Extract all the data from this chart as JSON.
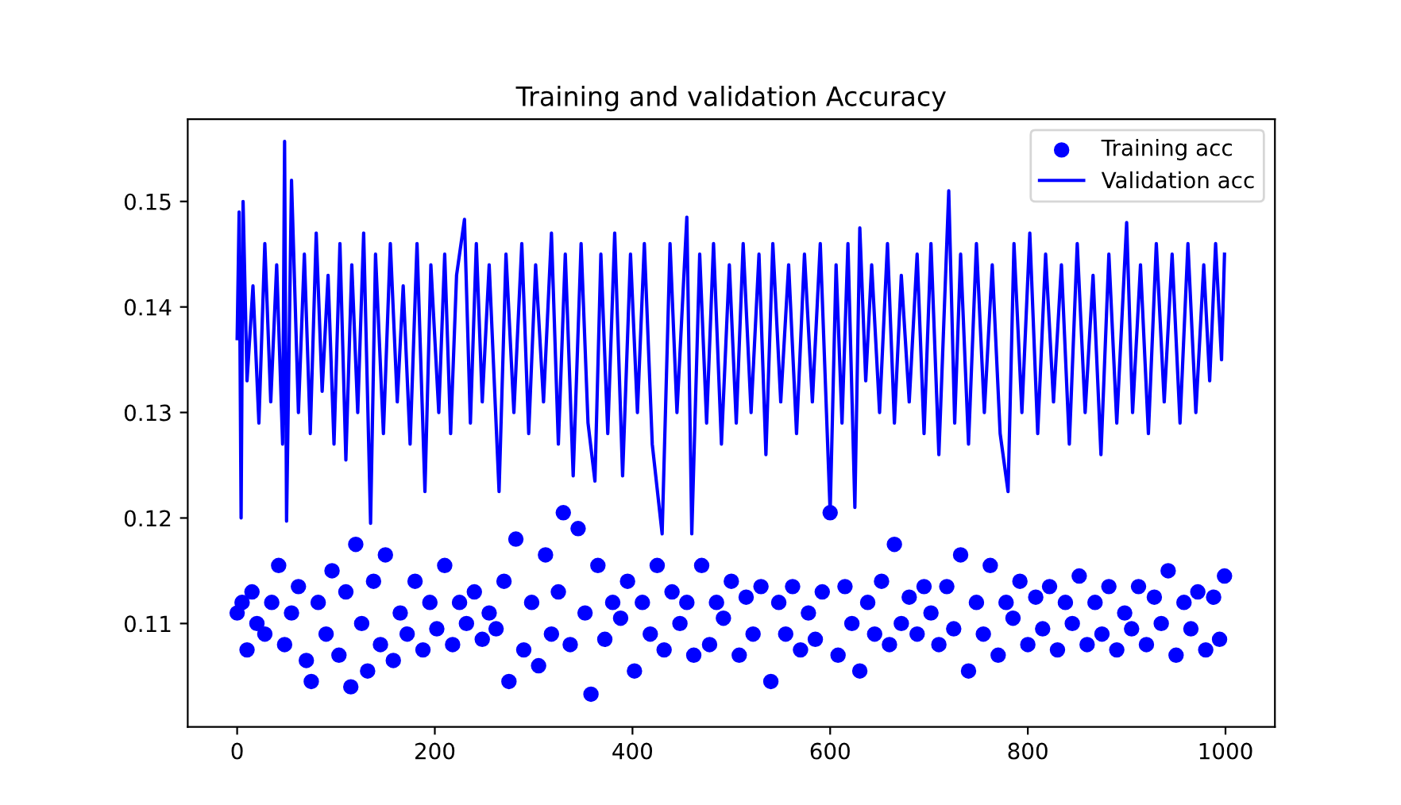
{
  "chart_data": {
    "type": "line",
    "title": "Training and validation Accuracy",
    "xlim": [
      -50,
      1050
    ],
    "xticks": [
      0,
      200,
      400,
      600,
      800,
      1000
    ],
    "ylim": [
      0.1002,
      0.1578
    ],
    "yticks": [
      0.11,
      0.12,
      0.13,
      0.14,
      0.15
    ],
    "grid": false,
    "legend": "top right",
    "series": [
      {
        "name": "Training acc",
        "type": "scatter",
        "marker": "circle",
        "color": "#0000ff",
        "x": [
          0,
          5,
          10,
          15,
          20,
          28,
          35,
          42,
          48,
          55,
          62,
          70,
          75,
          82,
          90,
          96,
          103,
          110,
          115,
          120,
          126,
          132,
          138,
          145,
          150,
          158,
          165,
          172,
          180,
          188,
          195,
          202,
          210,
          218,
          225,
          232,
          240,
          248,
          255,
          262,
          270,
          275,
          282,
          290,
          298,
          305,
          312,
          318,
          325,
          330,
          337,
          345,
          352,
          358,
          365,
          372,
          380,
          388,
          395,
          402,
          410,
          418,
          425,
          432,
          440,
          448,
          455,
          462,
          470,
          478,
          485,
          492,
          500,
          508,
          515,
          522,
          530,
          540,
          548,
          555,
          562,
          570,
          578,
          585,
          592,
          600,
          608,
          615,
          622,
          630,
          638,
          645,
          652,
          660,
          665,
          672,
          680,
          688,
          695,
          702,
          710,
          718,
          725,
          732,
          740,
          748,
          755,
          762,
          770,
          778,
          785,
          792,
          800,
          808,
          815,
          822,
          830,
          838,
          845,
          852,
          860,
          868,
          875,
          882,
          890,
          898,
          905,
          912,
          920,
          928,
          935,
          942,
          950,
          958,
          965,
          972,
          980,
          988,
          994,
          999
        ],
        "values": [
          0.111,
          0.112,
          0.1075,
          0.113,
          0.11,
          0.109,
          0.112,
          0.1155,
          0.108,
          0.111,
          0.1135,
          0.1065,
          0.1045,
          0.112,
          0.109,
          0.115,
          0.107,
          0.113,
          0.104,
          0.1175,
          0.11,
          0.1055,
          0.114,
          0.108,
          0.1165,
          0.1065,
          0.111,
          0.109,
          0.114,
          0.1075,
          0.112,
          0.1095,
          0.1155,
          0.108,
          0.112,
          0.11,
          0.113,
          0.1085,
          0.111,
          0.1095,
          0.114,
          0.1045,
          0.118,
          0.1075,
          0.112,
          0.106,
          0.1165,
          0.109,
          0.113,
          0.1205,
          0.108,
          0.119,
          0.111,
          0.1033,
          0.1155,
          0.1085,
          0.112,
          0.1105,
          0.114,
          0.1055,
          0.112,
          0.109,
          0.1155,
          0.1075,
          0.113,
          0.11,
          0.112,
          0.107,
          0.1155,
          0.108,
          0.112,
          0.1105,
          0.114,
          0.107,
          0.1125,
          0.109,
          0.1135,
          0.1045,
          0.112,
          0.109,
          0.1135,
          0.1075,
          0.111,
          0.1085,
          0.113,
          0.1205,
          0.107,
          0.1135,
          0.11,
          0.1055,
          0.112,
          0.109,
          0.114,
          0.108,
          0.1175,
          0.11,
          0.1125,
          0.109,
          0.1135,
          0.111,
          0.108,
          0.1135,
          0.1095,
          0.1165,
          0.1055,
          0.112,
          0.109,
          0.1155,
          0.107,
          0.112,
          0.1105,
          0.114,
          0.108,
          0.1125,
          0.1095,
          0.1135,
          0.1075,
          0.112,
          0.11,
          0.1145,
          0.108,
          0.112,
          0.109,
          0.1135,
          0.1075,
          0.111,
          0.1095,
          0.1135,
          0.108,
          0.1125,
          0.11,
          0.115,
          0.107,
          0.112,
          0.1095,
          0.113,
          0.1075,
          0.1125,
          0.1085,
          0.1145
        ]
      },
      {
        "name": "Validation acc",
        "marker": "none",
        "color": "#0000ff",
        "x": [
          0,
          2,
          4,
          6,
          10,
          16,
          22,
          28,
          34,
          40,
          46,
          48,
          50,
          55,
          62,
          68,
          74,
          80,
          86,
          92,
          98,
          104,
          110,
          116,
          122,
          128,
          135,
          140,
          148,
          155,
          162,
          168,
          175,
          182,
          190,
          196,
          204,
          210,
          216,
          222,
          230,
          236,
          242,
          248,
          255,
          265,
          272,
          280,
          288,
          295,
          302,
          310,
          318,
          325,
          332,
          340,
          348,
          355,
          362,
          368,
          375,
          382,
          390,
          398,
          405,
          412,
          420,
          430,
          438,
          445,
          455,
          460,
          468,
          475,
          482,
          490,
          498,
          505,
          512,
          520,
          528,
          535,
          542,
          550,
          558,
          566,
          574,
          582,
          590,
          600,
          606,
          612,
          618,
          625,
          630,
          636,
          642,
          650,
          658,
          665,
          672,
          680,
          688,
          695,
          702,
          710,
          720,
          726,
          732,
          740,
          748,
          756,
          764,
          772,
          780,
          786,
          794,
          802,
          810,
          818,
          826,
          834,
          842,
          850,
          858,
          866,
          874,
          882,
          890,
          900,
          906,
          914,
          922,
          930,
          938,
          946,
          954,
          962,
          970,
          978,
          984,
          990,
          996,
          999
        ],
        "values": [
          0.137,
          0.149,
          0.12,
          0.15,
          0.133,
          0.142,
          0.129,
          0.146,
          0.131,
          0.144,
          0.127,
          0.1557,
          0.1197,
          0.152,
          0.13,
          0.145,
          0.128,
          0.147,
          0.132,
          0.143,
          0.127,
          0.146,
          0.1255,
          0.144,
          0.13,
          0.147,
          0.1195,
          0.145,
          0.128,
          0.146,
          0.131,
          0.142,
          0.127,
          0.146,
          0.1225,
          0.144,
          0.13,
          0.145,
          0.128,
          0.143,
          0.1483,
          0.129,
          0.146,
          0.131,
          0.144,
          0.1225,
          0.145,
          0.13,
          0.146,
          0.128,
          0.144,
          0.131,
          0.147,
          0.127,
          0.145,
          0.124,
          0.146,
          0.129,
          0.1235,
          0.145,
          0.128,
          0.147,
          0.124,
          0.145,
          0.13,
          0.146,
          0.127,
          0.1185,
          0.146,
          0.13,
          0.1485,
          0.1185,
          0.145,
          0.129,
          0.146,
          0.127,
          0.144,
          0.129,
          0.146,
          0.13,
          0.145,
          0.126,
          0.146,
          0.131,
          0.144,
          0.128,
          0.145,
          0.131,
          0.146,
          0.1205,
          0.144,
          0.129,
          0.146,
          0.121,
          0.1475,
          0.133,
          0.144,
          0.13,
          0.146,
          0.129,
          0.143,
          0.131,
          0.145,
          0.128,
          0.146,
          0.126,
          0.151,
          0.129,
          0.145,
          0.127,
          0.146,
          0.13,
          0.144,
          0.128,
          0.1225,
          0.146,
          0.13,
          0.147,
          0.128,
          0.145,
          0.131,
          0.144,
          0.127,
          0.146,
          0.13,
          0.143,
          0.126,
          0.145,
          0.129,
          0.148,
          0.13,
          0.144,
          0.128,
          0.146,
          0.131,
          0.145,
          0.129,
          0.146,
          0.13,
          0.144,
          0.133,
          0.146,
          0.135,
          0.145
        ]
      }
    ]
  }
}
